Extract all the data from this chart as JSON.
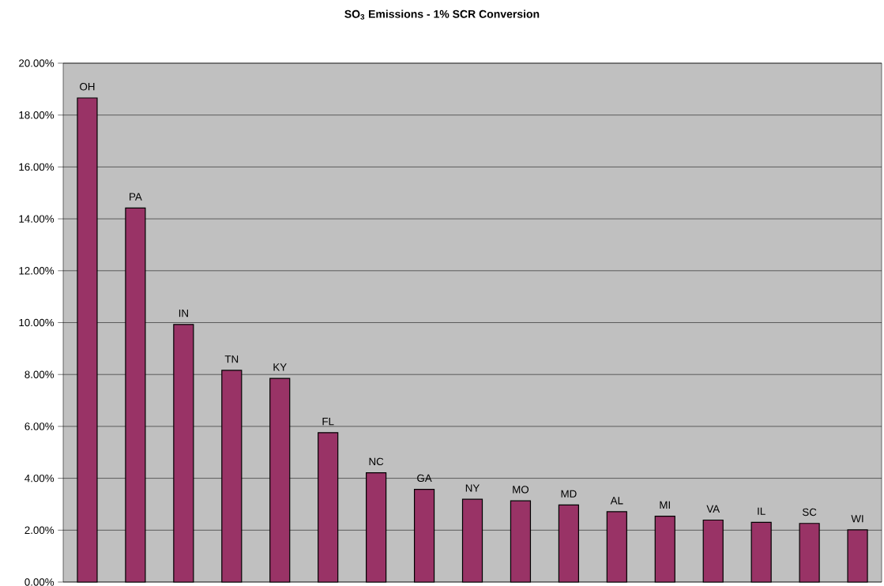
{
  "chart_data": {
    "type": "bar",
    "title": "SO$_{3}$ Emissions - 1% SCR Conversion",
    "categories": [
      "OH",
      "PA",
      "IN",
      "TN",
      "KY",
      "FL",
      "NC",
      "GA",
      "NY",
      "MO",
      "MD",
      "AL",
      "MI",
      "VA",
      "IL",
      "SC",
      "WI"
    ],
    "values": [
      18.66,
      14.42,
      9.93,
      8.16,
      7.85,
      5.76,
      4.21,
      3.57,
      3.19,
      3.13,
      2.97,
      2.71,
      2.54,
      2.39,
      2.3,
      2.26,
      2.01
    ],
    "color": "#993366",
    "ylim": [
      0,
      20
    ],
    "yticks": [
      {
        "value": 0,
        "label": "0.00%"
      },
      {
        "value": 2,
        "label": "2.00%"
      },
      {
        "value": 4,
        "label": "4.00%"
      },
      {
        "value": 6,
        "label": "6.00%"
      },
      {
        "value": 8,
        "label": "8.00%"
      },
      {
        "value": 10,
        "label": "10.00%"
      },
      {
        "value": 12,
        "label": "12.00%"
      },
      {
        "value": 14,
        "label": "14.00%"
      },
      {
        "value": 16,
        "label": "16.00%"
      },
      {
        "value": 18,
        "label": "18.00%"
      },
      {
        "value": 20,
        "label": "20.00%"
      }
    ],
    "grid": "y"
  }
}
